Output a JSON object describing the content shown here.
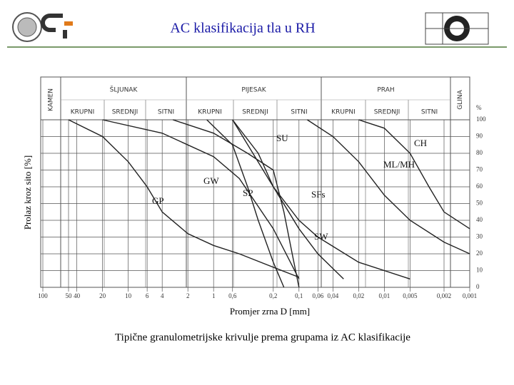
{
  "header": {
    "title": "AC klasifikacija tla u RH"
  },
  "chart_data": {
    "type": "line",
    "xlabel": "Promjer zrna D [mm]",
    "ylabel": "Prolaz kroz sito [%]",
    "yunit": "%",
    "caption": "Tipične granulometrijske krivulje prema grupama iz AC klasifikacije",
    "bands": [
      {
        "name": "KAMEN"
      },
      {
        "name": "ŠLJUNAK",
        "parts": [
          "KRUPNI",
          "SREDNJI",
          "SITNI"
        ]
      },
      {
        "name": "PIJESAK",
        "parts": [
          "KRUPNI",
          "SREDNJI",
          "SITNI"
        ]
      },
      {
        "name": "PRAH",
        "parts": [
          "KRUPNI",
          "SREDNJI",
          "SITNI"
        ]
      },
      {
        "name": "GLINA"
      }
    ],
    "log_x": true,
    "xlim": [
      100,
      0.001
    ],
    "xticks": [
      100,
      50,
      40,
      20,
      10,
      6,
      4,
      2,
      1,
      {
        "value": 0.6,
        "label": "0,6"
      },
      {
        "value": 0.2,
        "label": "0,2"
      },
      {
        "value": 0.1,
        "label": "0,1"
      },
      {
        "value": 0.06,
        "label": "0,06"
      },
      {
        "value": 0.04,
        "label": "0,04"
      },
      {
        "value": 0.02,
        "label": "0,02"
      },
      {
        "value": 0.01,
        "label": "0,01"
      },
      {
        "value": 0.005,
        "label": "0,005"
      },
      {
        "value": 0.002,
        "label": "0,002"
      },
      {
        "value": 0.001,
        "label": "0,001"
      }
    ],
    "ylim": [
      0,
      100
    ],
    "yticks": [
      0,
      10,
      20,
      30,
      40,
      50,
      60,
      70,
      80,
      90,
      100
    ],
    "grid": true,
    "series": [
      {
        "name": "GP",
        "color": "#222222",
        "x": [
          50,
          20,
          10,
          6,
          4,
          2,
          1,
          0.5,
          0.2,
          0.1
        ],
        "values": [
          100,
          90,
          75,
          60,
          45,
          32,
          25,
          20,
          12,
          6
        ]
      },
      {
        "name": "GW",
        "color": "#222222",
        "x": [
          20,
          4,
          1,
          0.5,
          0.2,
          0.1
        ],
        "values": [
          100,
          92,
          78,
          65,
          35,
          5
        ]
      },
      {
        "name": "SP",
        "color": "#222222",
        "x": [
          1.2,
          0.6,
          0.4,
          0.3,
          0.2,
          0.15
        ],
        "values": [
          100,
          85,
          60,
          40,
          15,
          0
        ]
      },
      {
        "name": "SU",
        "color": "#222222",
        "x": [
          3,
          1,
          0.4,
          0.2,
          0.15,
          0.12,
          0.1
        ],
        "values": [
          100,
          92,
          80,
          70,
          45,
          20,
          0
        ]
      },
      {
        "name": "SFs",
        "color": "#222222",
        "x": [
          0.6,
          0.3,
          0.2,
          0.1,
          0.06,
          0.03
        ],
        "values": [
          100,
          80,
          60,
          35,
          20,
          5
        ]
      },
      {
        "name": "SW",
        "color": "#222222",
        "x": [
          0.6,
          0.2,
          0.1,
          0.06,
          0.02,
          0.005
        ],
        "values": [
          100,
          60,
          40,
          30,
          15,
          5
        ]
      },
      {
        "name": "ML/MH",
        "color": "#222222",
        "x": [
          0.08,
          0.04,
          0.02,
          0.01,
          0.005,
          0.002,
          0.001
        ],
        "values": [
          100,
          90,
          75,
          55,
          40,
          27,
          20
        ]
      },
      {
        "name": "CH",
        "color": "#222222",
        "x": [
          0.02,
          0.01,
          0.005,
          0.003,
          0.002,
          0.001
        ],
        "values": [
          100,
          95,
          80,
          60,
          45,
          35
        ]
      }
    ]
  }
}
